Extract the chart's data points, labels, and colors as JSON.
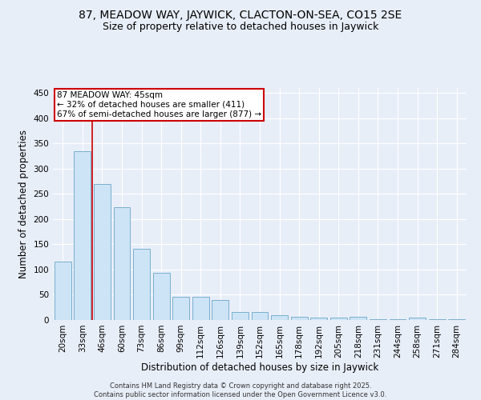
{
  "title1": "87, MEADOW WAY, JAYWICK, CLACTON-ON-SEA, CO15 2SE",
  "title2": "Size of property relative to detached houses in Jaywick",
  "xlabel": "Distribution of detached houses by size in Jaywick",
  "ylabel": "Number of detached properties",
  "categories": [
    "20sqm",
    "33sqm",
    "46sqm",
    "60sqm",
    "73sqm",
    "86sqm",
    "99sqm",
    "112sqm",
    "126sqm",
    "139sqm",
    "152sqm",
    "165sqm",
    "178sqm",
    "192sqm",
    "205sqm",
    "218sqm",
    "231sqm",
    "244sqm",
    "258sqm",
    "271sqm",
    "284sqm"
  ],
  "values": [
    116,
    335,
    269,
    223,
    141,
    93,
    46,
    46,
    40,
    16,
    16,
    9,
    6,
    4,
    4,
    6,
    2,
    2,
    5,
    2,
    2
  ],
  "bar_color": "#cce4f5",
  "bar_edge_color": "#7aafcf",
  "reference_line_x": 1.5,
  "reference_line_color": "#cc0000",
  "annotation_text": "87 MEADOW WAY: 45sqm\n← 32% of detached houses are smaller (411)\n67% of semi-detached houses are larger (877) →",
  "annotation_box_color": "#ffffff",
  "annotation_box_edge_color": "#cc0000",
  "ylim": [
    0,
    460
  ],
  "yticks": [
    0,
    50,
    100,
    150,
    200,
    250,
    300,
    350,
    400,
    450
  ],
  "background_color": "#e8eef8",
  "grid_color": "#ffffff",
  "footer1": "Contains HM Land Registry data © Crown copyright and database right 2025.",
  "footer2": "Contains public sector information licensed under the Open Government Licence v3.0.",
  "title_fontsize": 10,
  "subtitle_fontsize": 9,
  "tick_fontsize": 7.5,
  "label_fontsize": 8.5,
  "annotation_fontsize": 7.5,
  "footer_fontsize": 6
}
